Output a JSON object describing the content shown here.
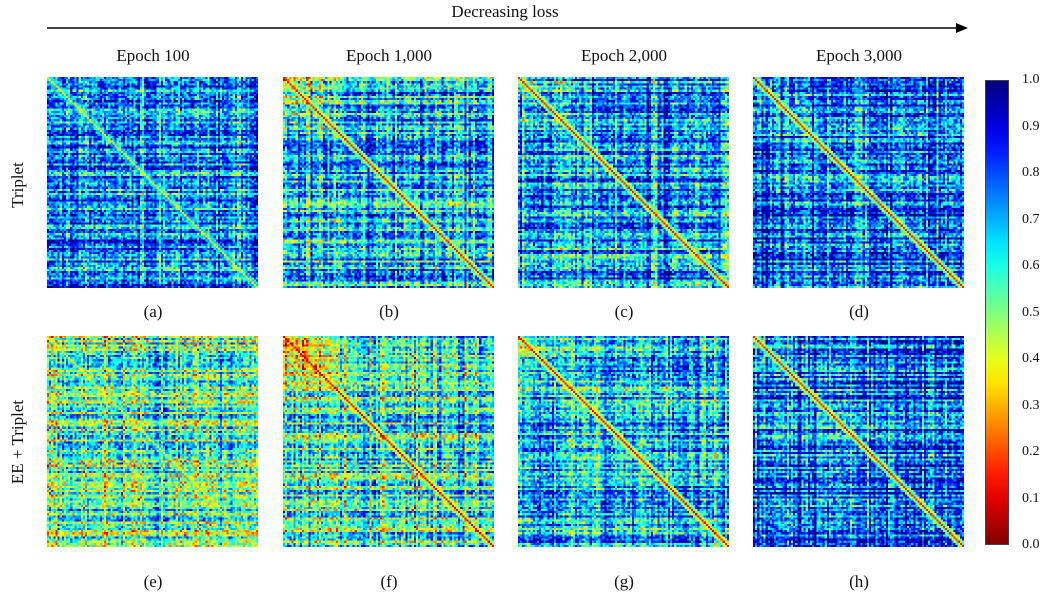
{
  "header": {
    "trend_label": "Decreasing loss"
  },
  "columns": [
    "Epoch 100",
    "Epoch 1,000",
    "Epoch 2,000",
    "Epoch 3,000"
  ],
  "rows": [
    "Triplet",
    "EE + Triplet"
  ],
  "panel_labels": [
    "(a)",
    "(b)",
    "(c)",
    "(d)",
    "(e)",
    "(f)",
    "(g)",
    "(h)"
  ],
  "colormap": "jet",
  "chart_data": {
    "type": "heatmap",
    "description_level": "per-panel distance matrices",
    "colorbar": {
      "min": 0.0,
      "max": 1.0,
      "ticks": [
        "0.0",
        "0.1",
        "0.2",
        "0.3",
        "0.4",
        "0.5",
        "0.6",
        "0.7",
        "0.8",
        "0.9",
        "1.0"
      ],
      "low_color": "#800000",
      "high_color": "#00007f"
    },
    "panels": [
      {
        "label": "(a)",
        "row": "Triplet",
        "column": "Epoch 100",
        "diag_value": 0.35,
        "mean_offdiag": 0.75,
        "block_strength": 0.05,
        "seed": 11
      },
      {
        "label": "(b)",
        "row": "Triplet",
        "column": "Epoch 1,000",
        "diag_value": 0.15,
        "mean_offdiag": 0.68,
        "block_strength": 0.25,
        "seed": 23
      },
      {
        "label": "(c)",
        "row": "Triplet",
        "column": "Epoch 2,000",
        "diag_value": 0.15,
        "mean_offdiag": 0.72,
        "block_strength": 0.18,
        "seed": 37
      },
      {
        "label": "(d)",
        "row": "Triplet",
        "column": "Epoch 3,000",
        "diag_value": 0.15,
        "mean_offdiag": 0.78,
        "block_strength": 0.12,
        "seed": 41
      },
      {
        "label": "(e)",
        "row": "EE + Triplet",
        "column": "Epoch 100",
        "diag_value": 0.35,
        "mean_offdiag": 0.55,
        "block_strength": 0.05,
        "seed": 53
      },
      {
        "label": "(f)",
        "row": "EE + Triplet",
        "column": "Epoch 1,000",
        "diag_value": 0.1,
        "mean_offdiag": 0.58,
        "block_strength": 0.35,
        "seed": 67
      },
      {
        "label": "(g)",
        "row": "EE + Triplet",
        "column": "Epoch 2,000",
        "diag_value": 0.12,
        "mean_offdiag": 0.68,
        "block_strength": 0.22,
        "seed": 71
      },
      {
        "label": "(h)",
        "row": "EE + Triplet",
        "column": "Epoch 3,000",
        "diag_value": 0.15,
        "mean_offdiag": 0.78,
        "block_strength": 0.12,
        "seed": 89
      }
    ]
  }
}
